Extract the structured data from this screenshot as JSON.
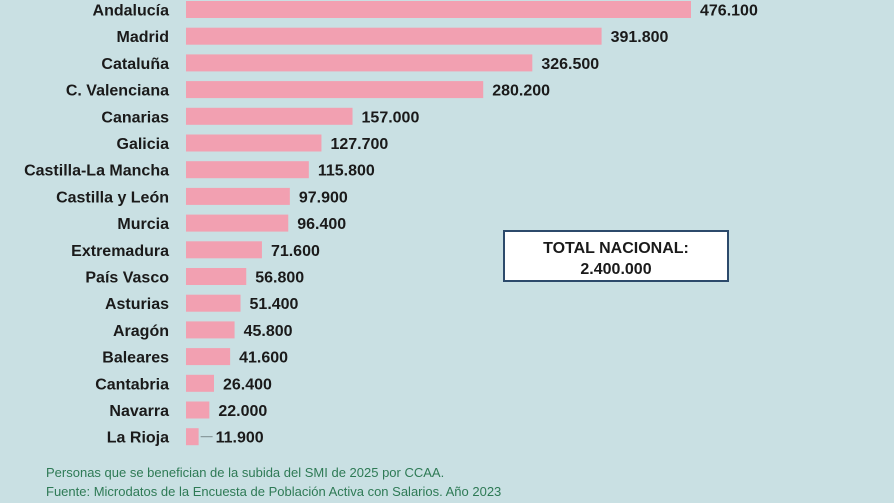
{
  "chart_data": {
    "type": "bar",
    "orientation": "horizontal",
    "categories": [
      "Andalucía",
      "Madrid",
      "Cataluña",
      "C. Valenciana",
      "Canarias",
      "Galicia",
      "Castilla-La Mancha",
      "Castilla y León",
      "Murcia",
      "Extremadura",
      "País Vasco",
      "Asturias",
      "Aragón",
      "Baleares",
      "Cantabria",
      "Navarra",
      "La Rioja"
    ],
    "values": [
      476100,
      391800,
      326500,
      280200,
      157000,
      127700,
      115800,
      97900,
      96400,
      71600,
      56800,
      51400,
      45800,
      41600,
      26400,
      22000,
      11900
    ],
    "value_labels": [
      "476.100",
      "391.800",
      "326.500",
      "280.200",
      "157.000",
      "127.700",
      "115.800",
      "97.900",
      "96.400",
      "71.600",
      "56.800",
      "51.400",
      "45.800",
      "41.600",
      "26.400",
      "22.000",
      "11.900"
    ],
    "bar_color": "#f2a0b1",
    "xlim": [
      0,
      476100
    ]
  },
  "total": {
    "label": "TOTAL NACIONAL:",
    "value": "2.400.000"
  },
  "footer": {
    "line1": "Personas que se benefician de la subida del SMI de 2025 por CCAA.",
    "line2": "Fuente: Microdatos de la Encuesta de Población Activa con Salarios. Año 2023"
  }
}
